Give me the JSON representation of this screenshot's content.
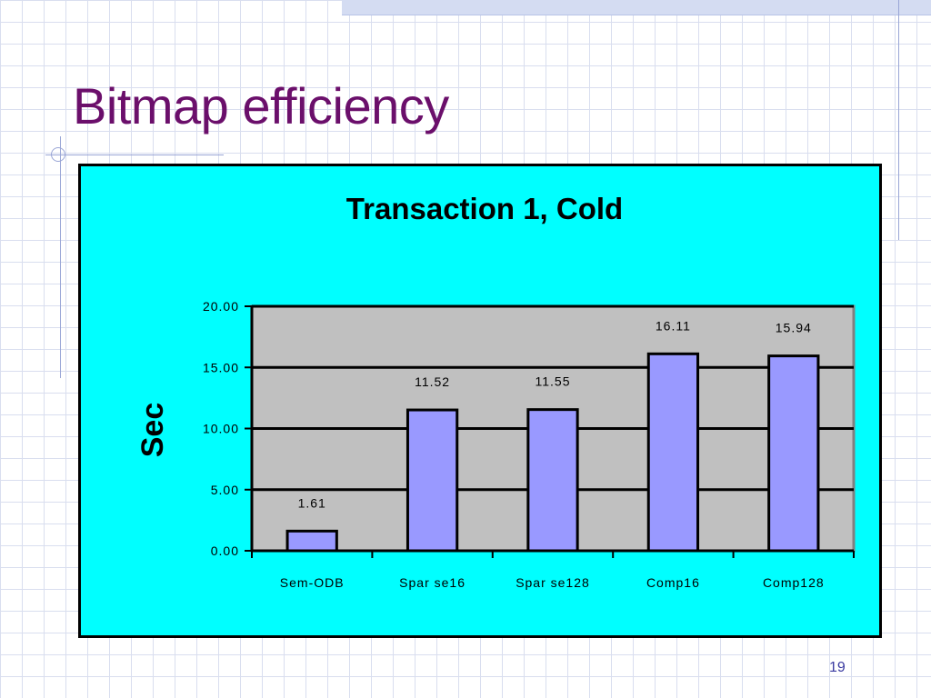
{
  "slide": {
    "title": "Bitmap efficiency",
    "page_number": "19"
  },
  "colors": {
    "title": "#6b0f6b",
    "chart_background": "#00ffff",
    "plot_area": "#c0c0c0",
    "bar_fill": "#9999ff",
    "page_number": "#3a3aa0"
  },
  "chart_data": {
    "type": "bar",
    "title": "Transaction 1, Cold",
    "xlabel": "",
    "ylabel": "Sec",
    "categories": [
      "Sem-ODB",
      "Spar se16",
      "Spar se128",
      "Comp16",
      "Comp128"
    ],
    "values": [
      1.61,
      11.52,
      11.55,
      16.11,
      15.94
    ],
    "data_labels": [
      "1.61",
      "11.52",
      "11.55",
      "16.11",
      "15.94"
    ],
    "ylim": [
      0,
      20
    ],
    "yticks": [
      0,
      5,
      10,
      15,
      20
    ],
    "ytick_labels": [
      "0.00",
      "5.00",
      "10.00",
      "15.00",
      "20.00"
    ],
    "grid": true,
    "legend": "none"
  }
}
